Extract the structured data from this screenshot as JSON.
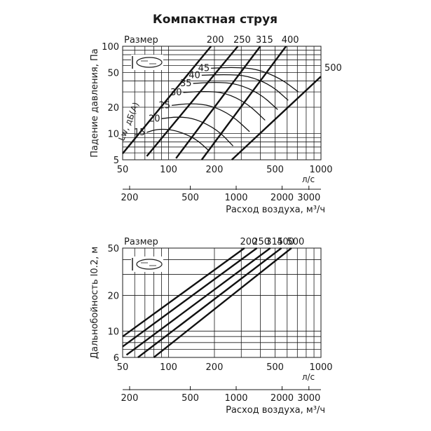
{
  "title": "Компактная струя",
  "colors": {
    "ink": "#1a1a1a",
    "background": "#ffffff"
  },
  "icon": "nozzle-jet-icon",
  "chart_data": [
    {
      "type": "line",
      "ylabel": "Падение давления, Па",
      "size_label": "Размер",
      "x_unit": "л/с",
      "x2label": "Расход воздуха, м³/ч",
      "x_scale": "log",
      "y_scale": "log",
      "xlim": [
        50,
        1000
      ],
      "ylim": [
        5,
        100
      ],
      "x_ticks": [
        50,
        100,
        200,
        500,
        1000
      ],
      "x_tick_labels": [
        "50",
        "100",
        "200",
        "500",
        "1000"
      ],
      "x2_ticks": [
        200,
        500,
        1000,
        2000,
        3000
      ],
      "x2_tick_labels": [
        "200",
        "500",
        "1000",
        "2000",
        "3000"
      ],
      "y_ticks": [
        5,
        10,
        20,
        50,
        100
      ],
      "y_tick_labels": [
        "5",
        "10",
        "20",
        "50",
        "100"
      ],
      "series": [
        {
          "name": "200",
          "points": [
            [
              50,
              5.9
            ],
            [
              190,
              100
            ]
          ]
        },
        {
          "name": "250",
          "points": [
            [
              72,
              5.5
            ],
            [
              285,
              100
            ]
          ]
        },
        {
          "name": "315",
          "points": [
            [
              112,
              5.2
            ],
            [
              400,
              100
            ]
          ]
        },
        {
          "name": "400",
          "points": [
            [
              165,
              5.0
            ],
            [
              590,
              100
            ]
          ]
        },
        {
          "name": "500",
          "points": [
            [
              260,
              5.0
            ],
            [
              1000,
              45
            ]
          ]
        }
      ],
      "noise_curves_label": "Lw, дБ(A)",
      "noise_curves": [
        {
          "name": "15",
          "points": [
            [
              72,
              10.3
            ],
            [
              85,
              11.3
            ],
            [
              110,
              11.0
            ],
            [
              150,
              8.8
            ],
            [
              185,
              6.3
            ]
          ]
        },
        {
          "name": "20",
          "points": [
            [
              90,
              14.8
            ],
            [
              115,
              15.6
            ],
            [
              150,
              14.8
            ],
            [
              210,
              11.0
            ],
            [
              265,
              7.2
            ]
          ]
        },
        {
          "name": "25",
          "points": [
            [
              105,
              21.0
            ],
            [
              140,
              22.2
            ],
            [
              190,
              21.0
            ],
            [
              260,
              16.2
            ],
            [
              340,
              10.5
            ]
          ]
        },
        {
          "name": "30",
          "points": [
            [
              125,
              29.5
            ],
            [
              170,
              30.5
            ],
            [
              235,
              29.5
            ],
            [
              330,
              22.0
            ],
            [
              430,
              14.2
            ]
          ]
        },
        {
          "name": "35",
          "points": [
            [
              145,
              37.5
            ],
            [
              200,
              38.8
            ],
            [
              280,
              37.5
            ],
            [
              400,
              28.5
            ],
            [
              520,
              18.8
            ]
          ]
        },
        {
          "name": "40",
          "points": [
            [
              165,
              46.5
            ],
            [
              240,
              47.5
            ],
            [
              330,
              46.0
            ],
            [
              470,
              36.0
            ],
            [
              610,
              24.0
            ]
          ]
        },
        {
          "name": "45",
          "points": [
            [
              190,
              56.0
            ],
            [
              270,
              57.5
            ],
            [
              380,
              55.0
            ],
            [
              540,
              43.0
            ],
            [
              710,
              30.0
            ]
          ]
        }
      ]
    },
    {
      "type": "line",
      "ylabel": "Дальнобойность l0.2, м",
      "size_label": "Размер",
      "x_unit": "л/с",
      "x2label": "Расход воздуха, м³/ч",
      "x_scale": "log",
      "y_scale": "log",
      "xlim": [
        50,
        1000
      ],
      "ylim": [
        6,
        50
      ],
      "x_ticks": [
        50,
        100,
        200,
        500,
        1000
      ],
      "x_tick_labels": [
        "50",
        "100",
        "200",
        "500",
        "1000"
      ],
      "x2_ticks": [
        200,
        500,
        1000,
        2000,
        3000
      ],
      "x2_tick_labels": [
        "200",
        "500",
        "1000",
        "2000",
        "3000"
      ],
      "y_ticks": [
        6,
        10,
        20,
        50
      ],
      "y_tick_labels": [
        "6",
        "10",
        "20",
        "50"
      ],
      "series": [
        {
          "name": "200",
          "points": [
            [
              50,
              9.0
            ],
            [
              315,
              50
            ]
          ]
        },
        {
          "name": "250",
          "points": [
            [
              50,
              7.4
            ],
            [
              380,
              50
            ]
          ]
        },
        {
          "name": "315",
          "points": [
            [
              53,
              6.3
            ],
            [
              465,
              50
            ]
          ]
        },
        {
          "name": "400",
          "points": [
            [
              63,
              6.0
            ],
            [
              550,
              50
            ]
          ]
        },
        {
          "name": "500",
          "points": [
            [
              80,
              6.0
            ],
            [
              640,
              50
            ]
          ]
        }
      ]
    }
  ]
}
